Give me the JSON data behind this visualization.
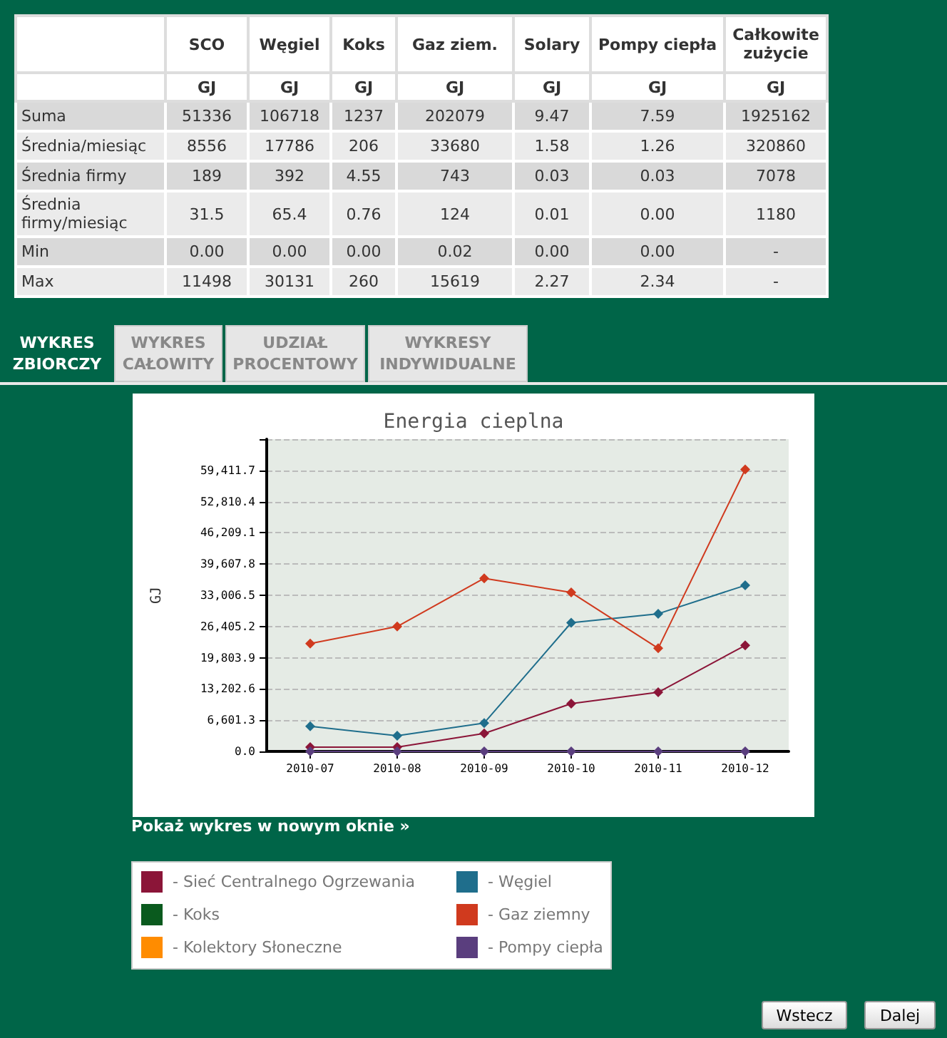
{
  "chart_data": [
    {
      "type": "other",
      "categories": [
        null,
        "SCO",
        "Węgiel",
        "Koks",
        "Gaz ziem.",
        "Solary",
        "Pompy ciepła",
        "Całkowite zużycie"
      ],
      "y_categories": [
        null,
        "Suma",
        "Średnia/miesiąc",
        "Średnia firmy",
        "Średnia firmy/miesiąc",
        "Min",
        "Max"
      ],
      "cell_labels": [
        [
          "GJ",
          "GJ",
          "GJ",
          "GJ",
          "GJ",
          "GJ",
          "GJ"
        ],
        [
          "51336",
          "106718",
          "1237",
          "202079",
          "9.47",
          "7.59",
          "1925162"
        ],
        [
          "8556",
          "17786",
          "206",
          "33680",
          "1.58",
          "1.26",
          "320860"
        ],
        [
          "189",
          "392",
          "4.55",
          "743",
          "0.03",
          "0.03",
          "7078"
        ],
        [
          "31.5",
          "65.4",
          "0.76",
          "124",
          "0.01",
          "0.00",
          "1180"
        ],
        [
          "0.00",
          "0.00",
          "0.00",
          "0.02",
          "0.00",
          "0.00",
          "-"
        ],
        [
          "11498",
          "30131",
          "260",
          "15619",
          "2.27",
          "2.34",
          "-"
        ]
      ],
      "annotations": [
        "WYKRES ZBIORCZY",
        "WYKRES CAŁOWITY",
        "UDZIAŁ PROCENTOWY",
        "WYKRESY INDYWIDUALNE"
      ]
    },
    {
      "type": "line",
      "title": "Energia cieplna",
      "ylabel": "GJ",
      "categories": [
        "2010-07",
        "2010-08",
        "2010-09",
        "2010-10",
        "2010-11",
        "2010-12"
      ],
      "series": [
        {
          "name": "- Sieć Centralnego Ogrzewania",
          "color": "#8b1538",
          "values": [
            900,
            900,
            3800,
            10100,
            12500,
            22400
          ]
        },
        {
          "name": "- Węgiel",
          "color": "#1f6e8c",
          "values": [
            5300,
            3300,
            6000,
            27200,
            29100,
            35100
          ]
        },
        {
          "name": "- Koks",
          "color": "#0a5a1e",
          "values": [
            null,
            null,
            null,
            null,
            null,
            null
          ]
        },
        {
          "name": "- Gaz ziemny",
          "color": "#d03a1e",
          "values": [
            22800,
            26400,
            36600,
            33600,
            21800,
            59600
          ]
        },
        {
          "name": "- Kolektory Słoneczne",
          "color": "#ff8c00",
          "values": [
            null,
            null,
            null,
            null,
            null,
            null
          ]
        },
        {
          "name": "- Pompy ciepła",
          "color": "#5a3e7e",
          "values": [
            0,
            0,
            0,
            0,
            0,
            0
          ]
        }
      ],
      "ylim": [
        0,
        66013
      ],
      "yticks": [
        {
          "value": 0,
          "label": "0.0"
        },
        {
          "value": 6601.3,
          "label": "6,601.3"
        },
        {
          "value": 13202.6,
          "label": "13,202.6"
        },
        {
          "value": 19803.9,
          "label": "19,803.9"
        },
        {
          "value": 26405.2,
          "label": "26,405.2"
        },
        {
          "value": 33006.5,
          "label": "33,006.5"
        },
        {
          "value": 39607.8,
          "label": "39,607.8"
        },
        {
          "value": 46209.1,
          "label": "46,209.1"
        },
        {
          "value": 52810.4,
          "label": "52,810.4"
        },
        {
          "value": 59411.7,
          "label": "59,411.7"
        }
      ],
      "grid": "y",
      "legend": "bottom",
      "marker": "diamond",
      "line_style": "solid",
      "annotations": [
        "Pokaż wykres w nowym oknie »",
        "Wstecz",
        "Dalej"
      ]
    }
  ]
}
